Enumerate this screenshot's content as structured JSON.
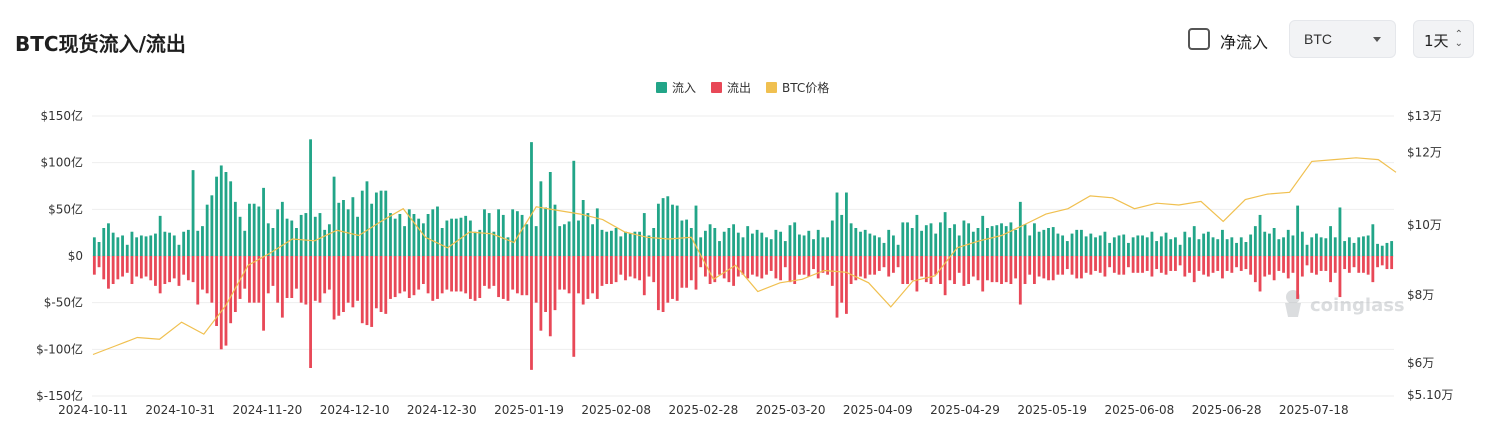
{
  "header": {
    "title": "BTC现货流入/流出",
    "net_inflow_label": "净流入",
    "asset_select": "BTC",
    "period_select": "1天"
  },
  "watermark": "coinglass",
  "colors": {
    "inflow": "#22a588",
    "outflow": "#e84857",
    "price": "#f0c050"
  },
  "chart_data": {
    "type": "bar",
    "legend": [
      "流入",
      "流出",
      "BTC价格"
    ],
    "legend_position": "top-center",
    "grid": true,
    "y_left": {
      "min": -150,
      "max": 150,
      "ticks": [
        150,
        100,
        50,
        0,
        -50,
        -100,
        -150
      ],
      "tick_labels": [
        "$150亿",
        "$100亿",
        "$50亿",
        "$0",
        "$-50亿",
        "$-100亿",
        "$-150亿"
      ]
    },
    "y_right": {
      "min": 51000,
      "max": 130000,
      "ticks": [
        130000,
        120000,
        100000,
        80000,
        60000,
        51000
      ],
      "tick_labels": [
        "$13万",
        "$12万",
        "$10万",
        "$8万",
        "$6万",
        "$5.10万"
      ]
    },
    "x_tick_labels": [
      "2024-10-11",
      "2024-10-31",
      "2024-11-20",
      "2024-12-10",
      "2024-12-30",
      "2025-01-19",
      "2025-02-08",
      "2025-02-28",
      "2025-03-20",
      "2025-04-09",
      "2025-04-29",
      "2025-05-19",
      "2025-06-08",
      "2025-06-28",
      "2025-07-18"
    ],
    "series": [
      {
        "name": "流入",
        "values": [
          20,
          15,
          30,
          35,
          25,
          20,
          22,
          12,
          26,
          20,
          22,
          21,
          22,
          24,
          43,
          26,
          25,
          22,
          12,
          26,
          28,
          92,
          27,
          32,
          55,
          65,
          85,
          97,
          90,
          80,
          58,
          42,
          27,
          56,
          56,
          53,
          73,
          35,
          30,
          50,
          58,
          40,
          38,
          30,
          44,
          46,
          125,
          42,
          46,
          28,
          34,
          85,
          57,
          60,
          50,
          63,
          42,
          70,
          80,
          56,
          68,
          70,
          70,
          46,
          40,
          45,
          32,
          50,
          45,
          40,
          35,
          45,
          50,
          53,
          30,
          38,
          40,
          40,
          41,
          43,
          38,
          26,
          28,
          50,
          46,
          26,
          50,
          44,
          20,
          50,
          48,
          44,
          34,
          122,
          32,
          80,
          52,
          90,
          55,
          32,
          34,
          37,
          102,
          38,
          60,
          46,
          34,
          51,
          28,
          26,
          27,
          30,
          21,
          26,
          24,
          26,
          26,
          46,
          22,
          30,
          56,
          62,
          64,
          55,
          54,
          38,
          39,
          30,
          54,
          20,
          27,
          34,
          30,
          16,
          26,
          30,
          34,
          25,
          20,
          32,
          24,
          28,
          25,
          20,
          18,
          28,
          26,
          16,
          33,
          36,
          23,
          22,
          27,
          18,
          28,
          20,
          20,
          38,
          68,
          44,
          68,
          35,
          30,
          26,
          28,
          24,
          22,
          20,
          14,
          28,
          22,
          12,
          36,
          36,
          30,
          44,
          27,
          33,
          35,
          24,
          36,
          47,
          30,
          34,
          22,
          38,
          35,
          26,
          30,
          43,
          30,
          32,
          33,
          35,
          32,
          36,
          28,
          58,
          34,
          22,
          35,
          26,
          28,
          30,
          31,
          24,
          22,
          16,
          24,
          28,
          28,
          21,
          24,
          20,
          22,
          26,
          14,
          20,
          22,
          23,
          14,
          20,
          22,
          22,
          20,
          26,
          16,
          21,
          25,
          18,
          20,
          12,
          26,
          20,
          32,
          18,
          24,
          26,
          20,
          18,
          28,
          18,
          20,
          14,
          20,
          15,
          23,
          32,
          44,
          26,
          24,
          30,
          18,
          20,
          28,
          22,
          54,
          26,
          12,
          20,
          24,
          20,
          19,
          32,
          20,
          52,
          16,
          20,
          14,
          20,
          21,
          22,
          34,
          13,
          11,
          14,
          16
        ]
      },
      {
        "name": "流出",
        "values": [
          -20,
          -12,
          -25,
          -35,
          -30,
          -25,
          -22,
          -18,
          -30,
          -22,
          -24,
          -22,
          -26,
          -32,
          -40,
          -30,
          -28,
          -24,
          -32,
          -20,
          -26,
          -28,
          -52,
          -36,
          -40,
          -50,
          -75,
          -100,
          -96,
          -72,
          -60,
          -46,
          -35,
          -50,
          -50,
          -50,
          -80,
          -40,
          -32,
          -50,
          -66,
          -45,
          -45,
          -35,
          -50,
          -52,
          -120,
          -48,
          -50,
          -40,
          -36,
          -68,
          -64,
          -60,
          -50,
          -55,
          -48,
          -72,
          -74,
          -76,
          -56,
          -60,
          -62,
          -46,
          -44,
          -40,
          -38,
          -45,
          -42,
          -36,
          -30,
          -40,
          -48,
          -46,
          -40,
          -36,
          -38,
          -38,
          -38,
          -40,
          -46,
          -48,
          -45,
          -32,
          -35,
          -32,
          -44,
          -46,
          -48,
          -36,
          -40,
          -42,
          -42,
          -122,
          -50,
          -80,
          -60,
          -86,
          -58,
          -36,
          -36,
          -40,
          -108,
          -40,
          -52,
          -46,
          -40,
          -46,
          -32,
          -30,
          -30,
          -28,
          -20,
          -26,
          -22,
          -24,
          -26,
          -42,
          -22,
          -28,
          -58,
          -60,
          -50,
          -46,
          -48,
          -34,
          -34,
          -26,
          -36,
          -12,
          -22,
          -30,
          -28,
          -20,
          -24,
          -28,
          -32,
          -22,
          -20,
          -24,
          -20,
          -22,
          -24,
          -20,
          -16,
          -24,
          -26,
          -12,
          -28,
          -30,
          -20,
          -20,
          -22,
          -14,
          -24,
          -18,
          -20,
          -32,
          -66,
          -50,
          -62,
          -30,
          -26,
          -22,
          -24,
          -20,
          -20,
          -16,
          -12,
          -22,
          -18,
          -12,
          -30,
          -30,
          -26,
          -38,
          -22,
          -28,
          -30,
          -20,
          -30,
          -42,
          -26,
          -30,
          -18,
          -32,
          -30,
          -22,
          -26,
          -38,
          -26,
          -28,
          -28,
          -30,
          -28,
          -30,
          -24,
          -52,
          -30,
          -20,
          -30,
          -22,
          -24,
          -26,
          -26,
          -20,
          -20,
          -14,
          -20,
          -24,
          -24,
          -18,
          -20,
          -16,
          -18,
          -22,
          -12,
          -18,
          -20,
          -20,
          -12,
          -18,
          -18,
          -18,
          -16,
          -22,
          -14,
          -18,
          -20,
          -16,
          -16,
          -10,
          -22,
          -18,
          -28,
          -16,
          -20,
          -22,
          -18,
          -16,
          -24,
          -16,
          -18,
          -12,
          -16,
          -14,
          -20,
          -28,
          -38,
          -22,
          -20,
          -26,
          -16,
          -18,
          -24,
          -18,
          -46,
          -22,
          -10,
          -18,
          -20,
          -16,
          -16,
          -28,
          -18,
          -44,
          -14,
          -18,
          -12,
          -18,
          -18,
          -20,
          -28,
          -12,
          -10,
          -14,
          -14
        ]
      },
      {
        "name": "BTC价格",
        "x": [
          "2024-10-11",
          "2024-10-16",
          "2024-10-21",
          "2024-10-26",
          "2024-10-31",
          "2024-11-05",
          "2024-11-10",
          "2024-11-15",
          "2024-11-20",
          "2024-11-25",
          "2024-11-30",
          "2024-12-05",
          "2024-12-10",
          "2024-12-15",
          "2024-12-20",
          "2024-12-25",
          "2024-12-30",
          "2025-01-04",
          "2025-01-09",
          "2025-01-14",
          "2025-01-19",
          "2025-01-24",
          "2025-01-29",
          "2025-02-03",
          "2025-02-08",
          "2025-02-13",
          "2025-02-18",
          "2025-02-23",
          "2025-02-28",
          "2025-03-05",
          "2025-03-10",
          "2025-03-15",
          "2025-03-20",
          "2025-03-25",
          "2025-03-30",
          "2025-04-04",
          "2025-04-09",
          "2025-04-14",
          "2025-04-19",
          "2025-04-24",
          "2025-04-29",
          "2025-05-04",
          "2025-05-09",
          "2025-05-14",
          "2025-05-19",
          "2025-05-24",
          "2025-05-29",
          "2025-06-03",
          "2025-06-08",
          "2025-06-13",
          "2025-06-18",
          "2025-06-23",
          "2025-06-28",
          "2025-07-03",
          "2025-07-08",
          "2025-07-13",
          "2025-07-18",
          "2025-07-23",
          "2025-07-28",
          "2025-08-01"
        ],
        "values": [
          62500,
          65000,
          67500,
          67000,
          72000,
          68500,
          77000,
          88500,
          92000,
          96000,
          95500,
          98500,
          97000,
          101000,
          104500,
          96500,
          93500,
          98000,
          97500,
          95000,
          105000,
          104000,
          103000,
          101500,
          98000,
          96500,
          96000,
          96500,
          84500,
          88500,
          81000,
          83500,
          84500,
          87000,
          86500,
          83500,
          76500,
          84000,
          85500,
          93500,
          95500,
          97000,
          100000,
          103000,
          104500,
          108000,
          107500,
          104500,
          106000,
          105500,
          106500,
          101000,
          107000,
          108500,
          109000,
          117500,
          118000,
          118500,
          118000,
          114500
        ]
      }
    ]
  }
}
